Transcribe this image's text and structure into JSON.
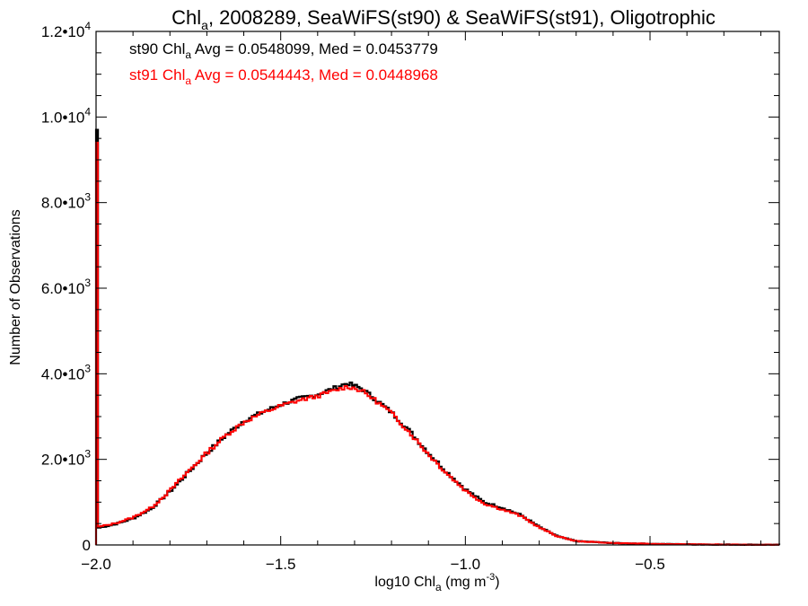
{
  "chart_data": {
    "type": "line",
    "title": {
      "pre": "Chl",
      "sub": "a",
      "post": ", 2008289, SeaWiFS(st90) & SeaWiFS(st91), Oligotrophic"
    },
    "xlabel": {
      "pre": "log10 Chl",
      "sub": "a",
      "post": " (mg m",
      "sup": "-3",
      "end": ")"
    },
    "ylabel": "Number of Observations",
    "xlim": [
      -2.0,
      -0.15
    ],
    "ylim": [
      0,
      12000
    ],
    "x_ticks": [
      {
        "v": -2.0,
        "label": "−2.0"
      },
      {
        "v": -1.5,
        "label": "−1.5"
      },
      {
        "v": -1.0,
        "label": "−1.0"
      },
      {
        "v": -0.5,
        "label": "−0.5"
      }
    ],
    "y_ticks": [
      {
        "v": 0,
        "base": "0",
        "exp": ""
      },
      {
        "v": 2000,
        "base": "2.0•10",
        "exp": "3"
      },
      {
        "v": 4000,
        "base": "4.0•10",
        "exp": "3"
      },
      {
        "v": 6000,
        "base": "6.0•10",
        "exp": "3"
      },
      {
        "v": 8000,
        "base": "8.0•10",
        "exp": "3"
      },
      {
        "v": 10000,
        "base": "1.0•10",
        "exp": "4"
      },
      {
        "v": 12000,
        "base": "1.2•10",
        "exp": "4"
      }
    ],
    "series": [
      {
        "name": "st90",
        "color": "#000000",
        "legend": {
          "pre": "st90 Chl",
          "sub": "a",
          "post": " Avg = 0.0548099, Med = 0.0453779"
        },
        "points": [
          [
            -2.0,
            0
          ],
          [
            -2.0,
            9700
          ],
          [
            -1.995,
            9700
          ],
          [
            -1.995,
            400
          ],
          [
            -1.95,
            480
          ],
          [
            -1.9,
            620
          ],
          [
            -1.85,
            850
          ],
          [
            -1.8,
            1250
          ],
          [
            -1.75,
            1700
          ],
          [
            -1.7,
            2150
          ],
          [
            -1.65,
            2550
          ],
          [
            -1.6,
            2900
          ],
          [
            -1.55,
            3100
          ],
          [
            -1.5,
            3280
          ],
          [
            -1.45,
            3420
          ],
          [
            -1.4,
            3520
          ],
          [
            -1.35,
            3680
          ],
          [
            -1.32,
            3780
          ],
          [
            -1.3,
            3720
          ],
          [
            -1.28,
            3650
          ],
          [
            -1.25,
            3450
          ],
          [
            -1.2,
            3100
          ],
          [
            -1.15,
            2650
          ],
          [
            -1.1,
            2150
          ],
          [
            -1.05,
            1700
          ],
          [
            -1.0,
            1300
          ],
          [
            -0.95,
            1000
          ],
          [
            -0.9,
            870
          ],
          [
            -0.85,
            700
          ],
          [
            -0.8,
            420
          ],
          [
            -0.75,
            200
          ],
          [
            -0.7,
            90
          ],
          [
            -0.6,
            45
          ],
          [
            -0.5,
            25
          ],
          [
            -0.4,
            15
          ],
          [
            -0.3,
            8
          ],
          [
            -0.15,
            5
          ]
        ]
      },
      {
        "name": "st91",
        "color": "#ff0000",
        "legend": {
          "pre": "st91 Chl",
          "sub": "a",
          "post": " Avg = 0.0544443, Med = 0.0448968"
        },
        "points": [
          [
            -2.0,
            0
          ],
          [
            -2.0,
            9400
          ],
          [
            -1.995,
            9400
          ],
          [
            -1.995,
            420
          ],
          [
            -1.95,
            500
          ],
          [
            -1.9,
            640
          ],
          [
            -1.85,
            870
          ],
          [
            -1.8,
            1270
          ],
          [
            -1.75,
            1720
          ],
          [
            -1.7,
            2150
          ],
          [
            -1.65,
            2550
          ],
          [
            -1.6,
            2870
          ],
          [
            -1.55,
            3080
          ],
          [
            -1.5,
            3250
          ],
          [
            -1.45,
            3380
          ],
          [
            -1.4,
            3480
          ],
          [
            -1.35,
            3620
          ],
          [
            -1.32,
            3700
          ],
          [
            -1.3,
            3660
          ],
          [
            -1.28,
            3600
          ],
          [
            -1.25,
            3420
          ],
          [
            -1.2,
            3080
          ],
          [
            -1.15,
            2620
          ],
          [
            -1.1,
            2120
          ],
          [
            -1.05,
            1670
          ],
          [
            -1.0,
            1270
          ],
          [
            -0.95,
            970
          ],
          [
            -0.9,
            830
          ],
          [
            -0.85,
            680
          ],
          [
            -0.8,
            410
          ],
          [
            -0.75,
            200
          ],
          [
            -0.7,
            90
          ],
          [
            -0.6,
            45
          ],
          [
            -0.5,
            25
          ],
          [
            -0.4,
            15
          ],
          [
            -0.3,
            8
          ],
          [
            -0.15,
            5
          ]
        ]
      }
    ],
    "grid": false,
    "legend_placement": "top-left"
  }
}
